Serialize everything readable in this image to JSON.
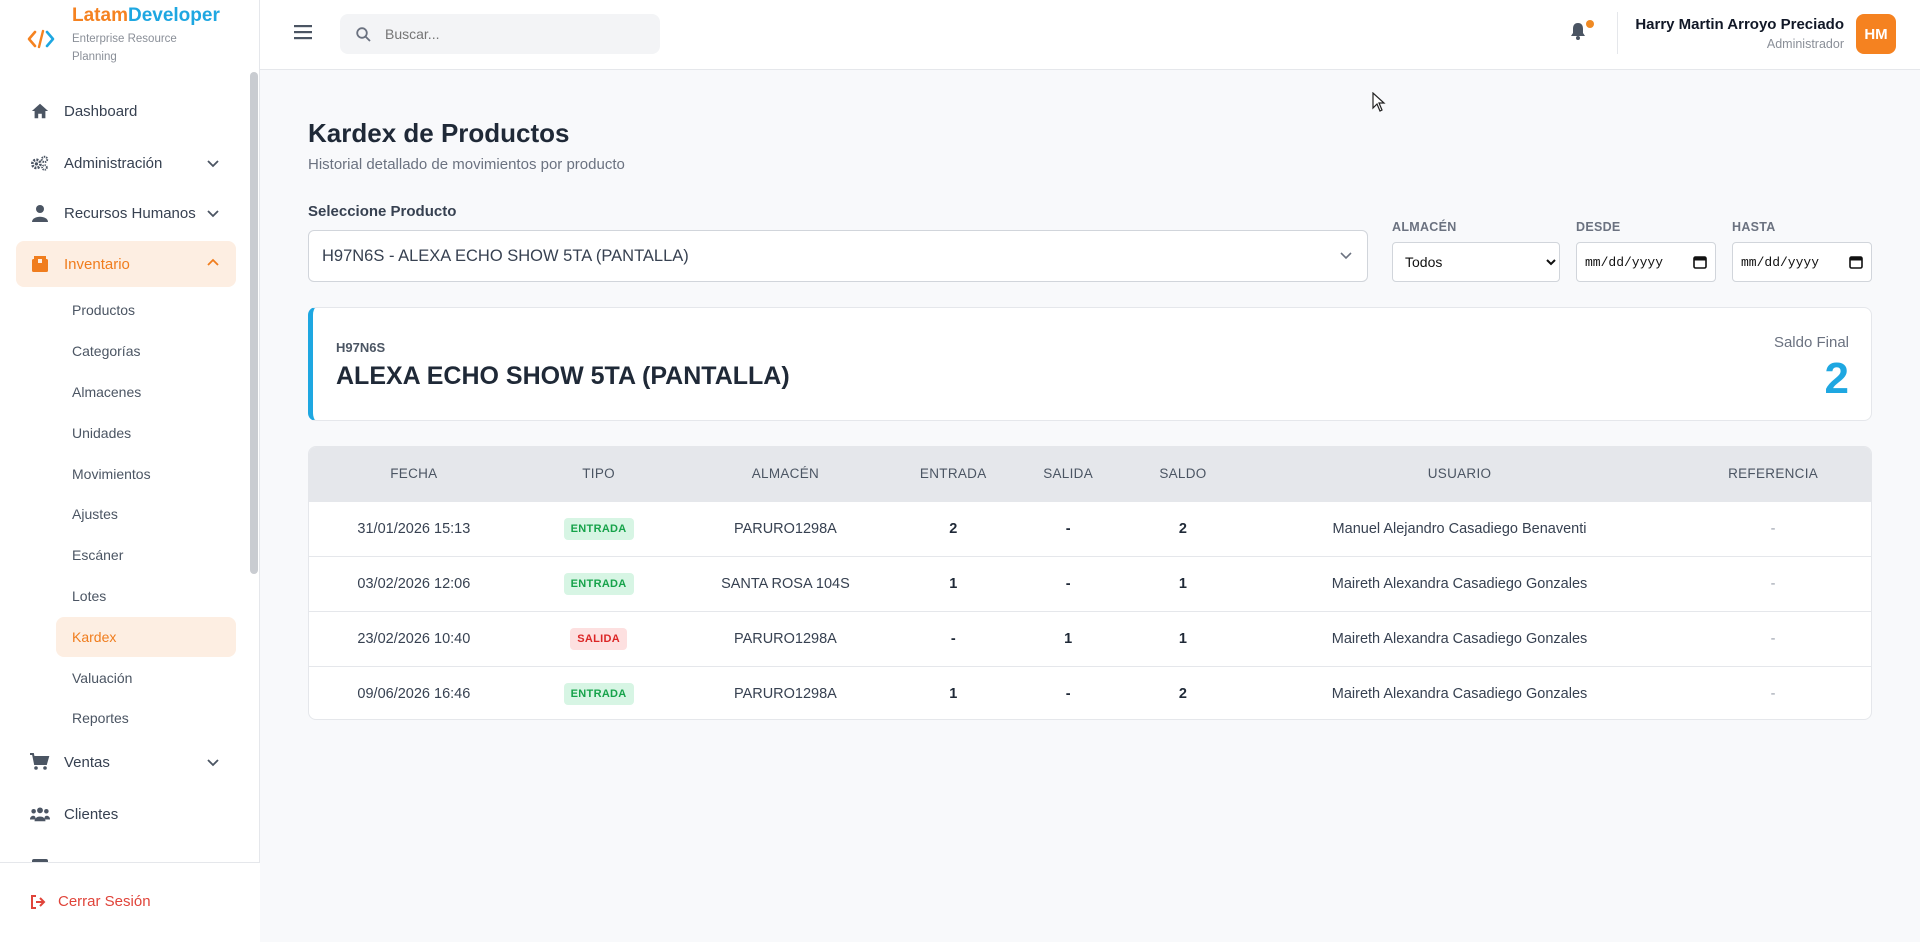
{
  "brand": {
    "name_part1": "Latam",
    "name_part2": "Developer",
    "subtitle": "Enterprise Resource Planning",
    "logo_icon": "code-brackets-icon"
  },
  "colors": {
    "accent_orange": "#f58220",
    "accent_blue": "#1ea7e1",
    "entrada_badge": "#16a34a",
    "salida_badge": "#dc2626"
  },
  "sidebar": {
    "items": [
      {
        "label": "Dashboard",
        "icon": "home-icon"
      },
      {
        "label": "Administración",
        "icon": "gears-icon",
        "expandable": true
      },
      {
        "label": "Recursos Humanos",
        "icon": "user-icon",
        "expandable": true
      },
      {
        "label": "Inventario",
        "icon": "box-icon",
        "expandable": true,
        "expanded": true,
        "active": true
      },
      {
        "label": "Ventas",
        "icon": "cart-icon",
        "expandable": true
      },
      {
        "label": "Clientes",
        "icon": "users-icon"
      }
    ],
    "inventario_sub": [
      "Productos",
      "Categorías",
      "Almacenes",
      "Unidades",
      "Movimientos",
      "Ajustes",
      "Escáner",
      "Lotes",
      "Kardex",
      "Valuación",
      "Reportes"
    ],
    "active_sub": "Kardex",
    "logout_label": "Cerrar Sesión"
  },
  "header": {
    "search_placeholder": "Buscar...",
    "user_name": "Harry Martin Arroyo Preciado",
    "user_role": "Administrador",
    "avatar_initials": "HM"
  },
  "page": {
    "title": "Kardex de Productos",
    "subtitle": "Historial detallado de movimientos por producto"
  },
  "filters": {
    "product_label": "Seleccione Producto",
    "product_value": "H97N6S - ALEXA ECHO SHOW 5TA (PANTALLA)",
    "almacen_label": "ALMACÉN",
    "almacen_value": "Todos",
    "desde_label": "DESDE",
    "desde_value": "mm/dd/yyyy",
    "hasta_label": "HASTA",
    "hasta_value": "mm/dd/yyyy"
  },
  "product_card": {
    "code": "H97N6S",
    "name": "ALEXA ECHO SHOW 5TA (PANTALLA)",
    "saldo_label": "Saldo Final",
    "saldo_value": "2"
  },
  "table": {
    "headers": [
      "FECHA",
      "TIPO",
      "ALMACÉN",
      "ENTRADA",
      "SALIDA",
      "SALDO",
      "USUARIO",
      "REFERENCIA"
    ],
    "rows": [
      {
        "fecha": "31/01/2026 15:13",
        "tipo": "ENTRADA",
        "almacen": "PARURO1298A",
        "entrada": "2",
        "salida": "-",
        "saldo": "2",
        "usuario": "Manuel Alejandro Casadiego Benaventi",
        "referencia": "-"
      },
      {
        "fecha": "03/02/2026 12:06",
        "tipo": "ENTRADA",
        "almacen": "SANTA ROSA 104S",
        "entrada": "1",
        "salida": "-",
        "saldo": "1",
        "usuario": "Maireth Alexandra Casadiego Gonzales",
        "referencia": "-"
      },
      {
        "fecha": "23/02/2026 10:40",
        "tipo": "SALIDA",
        "almacen": "PARURO1298A",
        "entrada": "-",
        "salida": "1",
        "saldo": "1",
        "usuario": "Maireth Alexandra Casadiego Gonzales",
        "referencia": "-"
      },
      {
        "fecha": "09/06/2026 16:46",
        "tipo": "ENTRADA",
        "almacen": "PARURO1298A",
        "entrada": "1",
        "salida": "-",
        "saldo": "2",
        "usuario": "Maireth Alexandra Casadiego Gonzales",
        "referencia": "-"
      }
    ]
  }
}
